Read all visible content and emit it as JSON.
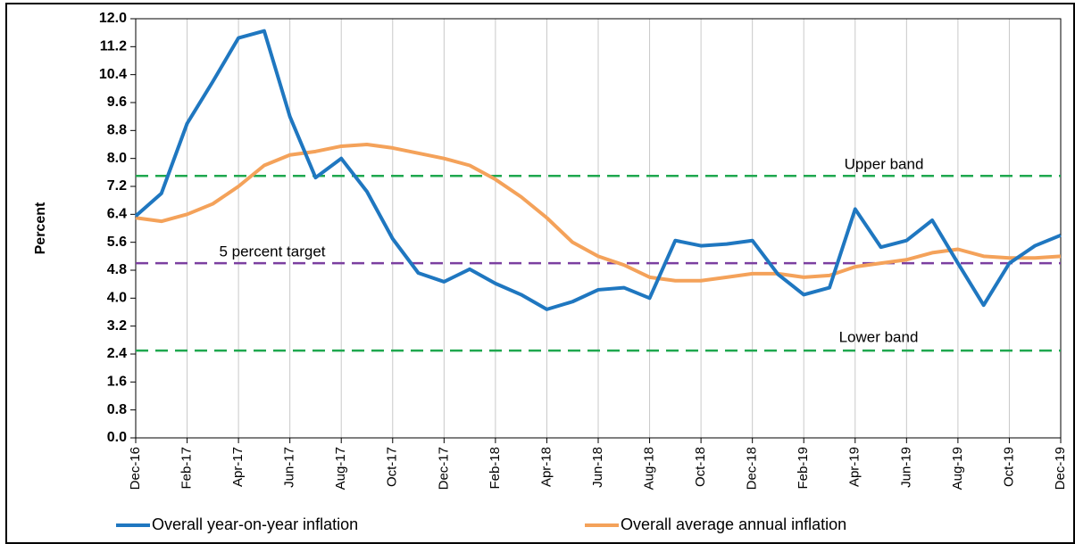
{
  "chart_data": {
    "type": "line",
    "y_label": "Percent",
    "categories": [
      "Dec-16",
      null,
      "Feb-17",
      null,
      "Apr-17",
      null,
      "Jun-17",
      null,
      "Aug-17",
      null,
      "Oct-17",
      null,
      "Dec-17",
      null,
      "Feb-18",
      null,
      "Apr-18",
      null,
      "Jun-18",
      null,
      "Aug-18",
      null,
      "Oct-18",
      null,
      "Dec-18",
      null,
      "Feb-19",
      null,
      "Apr-19",
      null,
      "Jun-19",
      null,
      "Aug-19",
      null,
      "Oct-19",
      null,
      "Dec-19"
    ],
    "series": [
      {
        "name": "Overall year-on-year inflation",
        "color": "#1f77c0",
        "values": [
          6.35,
          7.0,
          9.0,
          10.2,
          11.45,
          11.65,
          9.2,
          7.45,
          8.0,
          7.05,
          5.7,
          4.72,
          4.47,
          4.83,
          4.42,
          4.1,
          3.68,
          3.9,
          4.24,
          4.3,
          4.0,
          5.65,
          5.5,
          5.55,
          5.65,
          4.68,
          4.1,
          4.3,
          6.55,
          5.46,
          5.65,
          6.23,
          5.0,
          3.8,
          5.0,
          5.5,
          5.8
        ]
      },
      {
        "name": "Overall average annual inflation",
        "color": "#f4a25a",
        "values": [
          6.3,
          6.2,
          6.4,
          6.7,
          7.2,
          7.8,
          8.1,
          8.2,
          8.35,
          8.4,
          8.3,
          8.15,
          8.0,
          7.8,
          7.4,
          6.9,
          6.3,
          5.6,
          5.2,
          4.95,
          4.6,
          4.5,
          4.5,
          4.6,
          4.7,
          4.7,
          4.6,
          4.65,
          4.9,
          5.0,
          5.1,
          5.3,
          5.4,
          5.2,
          5.15,
          5.15,
          5.2
        ]
      }
    ],
    "reference_lines": [
      {
        "label": "Upper band",
        "value": 7.5,
        "color": "#1fa84f"
      },
      {
        "label": "5 percent target",
        "value": 5.0,
        "color": "#7b3fa0"
      },
      {
        "label": "Lower band",
        "value": 2.5,
        "color": "#1fa84f"
      }
    ],
    "ylim": [
      0,
      12
    ],
    "yticks": [
      {
        "value": 0,
        "label": "0.0"
      },
      0.8,
      1.6,
      2.4,
      3.2,
      {
        "value": 4,
        "label": "4.0"
      },
      4.8,
      5.6,
      6.4,
      7.2,
      {
        "value": 8,
        "label": "8.0"
      },
      8.8,
      9.6,
      10.4,
      11.2,
      {
        "value": 12,
        "label": "12.0"
      }
    ],
    "grid": true,
    "legend": "bottom"
  }
}
